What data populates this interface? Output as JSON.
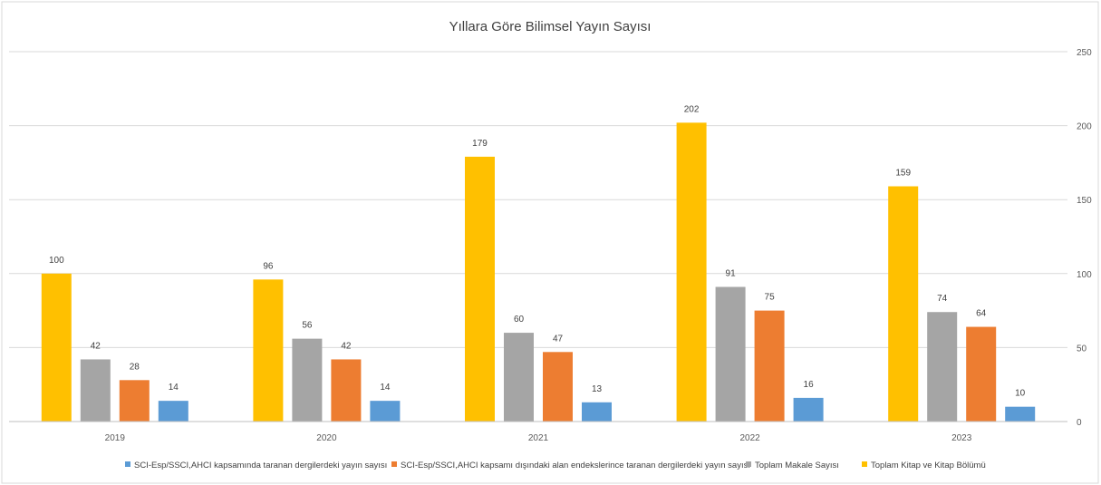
{
  "chart_data": {
    "type": "bar",
    "title": "Yıllara Göre Bilimsel Yayın Sayısı",
    "categories": [
      "2019",
      "2020",
      "2021",
      "2022",
      "2023"
    ],
    "series": [
      {
        "name": "Toplam Kitap ve Kitap Bölümü",
        "color": "#FFC000",
        "values": [
          100,
          96,
          179,
          202,
          159
        ]
      },
      {
        "name": "Toplam Makale Sayısı",
        "color": "#A5A5A5",
        "values": [
          42,
          56,
          60,
          91,
          74
        ]
      },
      {
        "name": "SCI-Esp/SSCI,AHCI kapsamı dışındaki alan endekslerince taranan dergilerdeki yayın sayısı",
        "color": "#ED7D31",
        "values": [
          28,
          42,
          47,
          75,
          64
        ]
      },
      {
        "name": "SCI-Esp/SSCI,AHCI kapsamında taranan dergilerdeki yayın sayısı",
        "color": "#5B9BD5",
        "values": [
          14,
          14,
          13,
          16,
          10
        ]
      }
    ],
    "legend_order": [
      3,
      2,
      1,
      0
    ],
    "y_ticks": [
      "0",
      "50",
      "100",
      "150",
      "200",
      "250"
    ],
    "ylim": [
      0,
      250
    ],
    "y_axis_side": "right",
    "grid": true,
    "legend_position": "bottom"
  }
}
